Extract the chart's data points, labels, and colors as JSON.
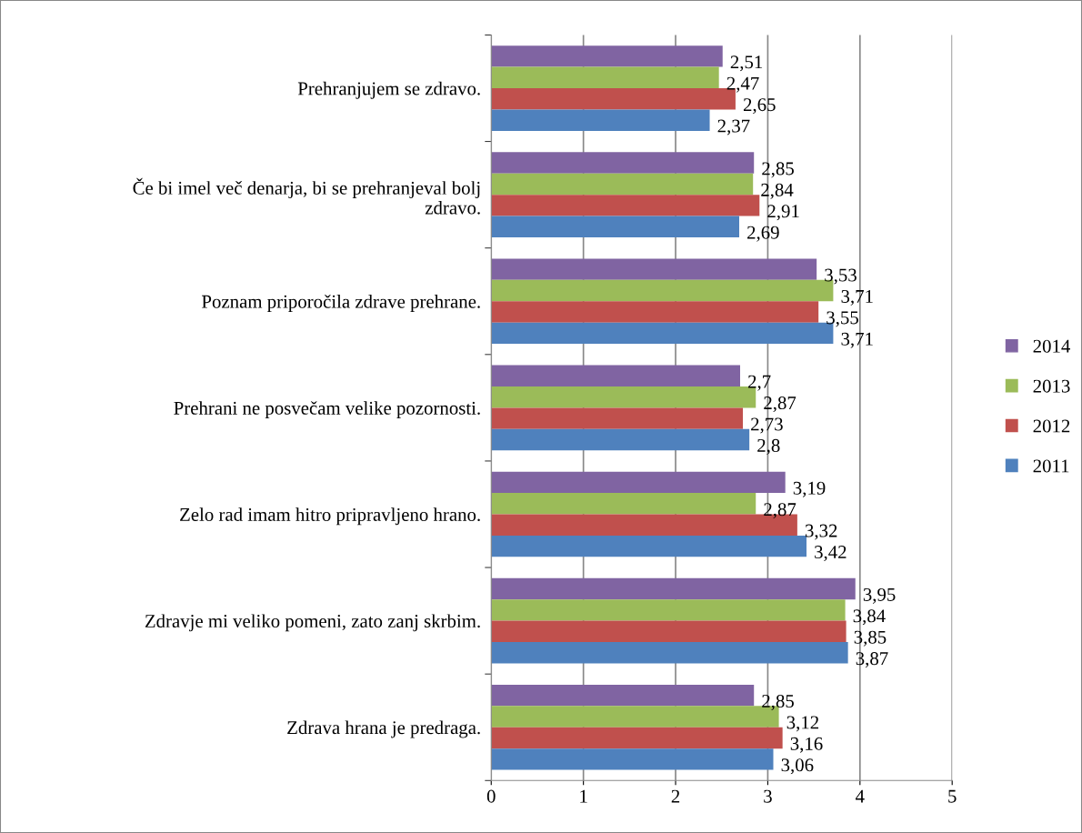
{
  "chart_data": {
    "type": "bar",
    "orientation": "horizontal",
    "categories": [
      "Prehranjujem se zdravo.",
      "Če bi imel več denarja, bi se prehranjeval bolj\nzdravo.",
      "Poznam priporočila zdrave prehrane.",
      "Prehrani ne posvečam velike pozornosti.",
      "Zelo rad imam hitro pripravljeno hrano.",
      "Zdravje mi veliko pomeni, zato zanj skrbim.",
      "Zdrava hrana je predraga."
    ],
    "series": [
      {
        "name": "2014",
        "color": "#8064a2",
        "values": [
          2.51,
          2.85,
          3.53,
          2.7,
          3.19,
          3.95,
          2.85
        ],
        "value_labels": [
          "2,51",
          "2,85",
          "3,53",
          "2,7",
          "3,19",
          "3,95",
          "2,85"
        ]
      },
      {
        "name": "2013",
        "color": "#9bbb59",
        "values": [
          2.47,
          2.84,
          3.71,
          2.87,
          2.87,
          3.84,
          3.12
        ],
        "value_labels": [
          "2,47",
          "2,84",
          "3,71",
          "2,87",
          "2,87",
          "3,84",
          "3,12"
        ]
      },
      {
        "name": "2012",
        "color": "#c0504d",
        "values": [
          2.65,
          2.91,
          3.55,
          2.73,
          3.32,
          3.85,
          3.16
        ],
        "value_labels": [
          "2,65",
          "2,91",
          "3,55",
          "2,73",
          "3,32",
          "3,85",
          "3,16"
        ]
      },
      {
        "name": "2011",
        "color": "#4f81bd",
        "values": [
          2.37,
          2.69,
          3.71,
          2.8,
          3.42,
          3.87,
          3.06
        ],
        "value_labels": [
          "2,37",
          "2,69",
          "3,71",
          "2,8",
          "3,42",
          "3,87",
          "3,06"
        ]
      }
    ],
    "xlim": [
      0,
      5
    ],
    "xticks": [
      0,
      1,
      2,
      3,
      4,
      5
    ],
    "grid": "x",
    "legend": "right"
  }
}
